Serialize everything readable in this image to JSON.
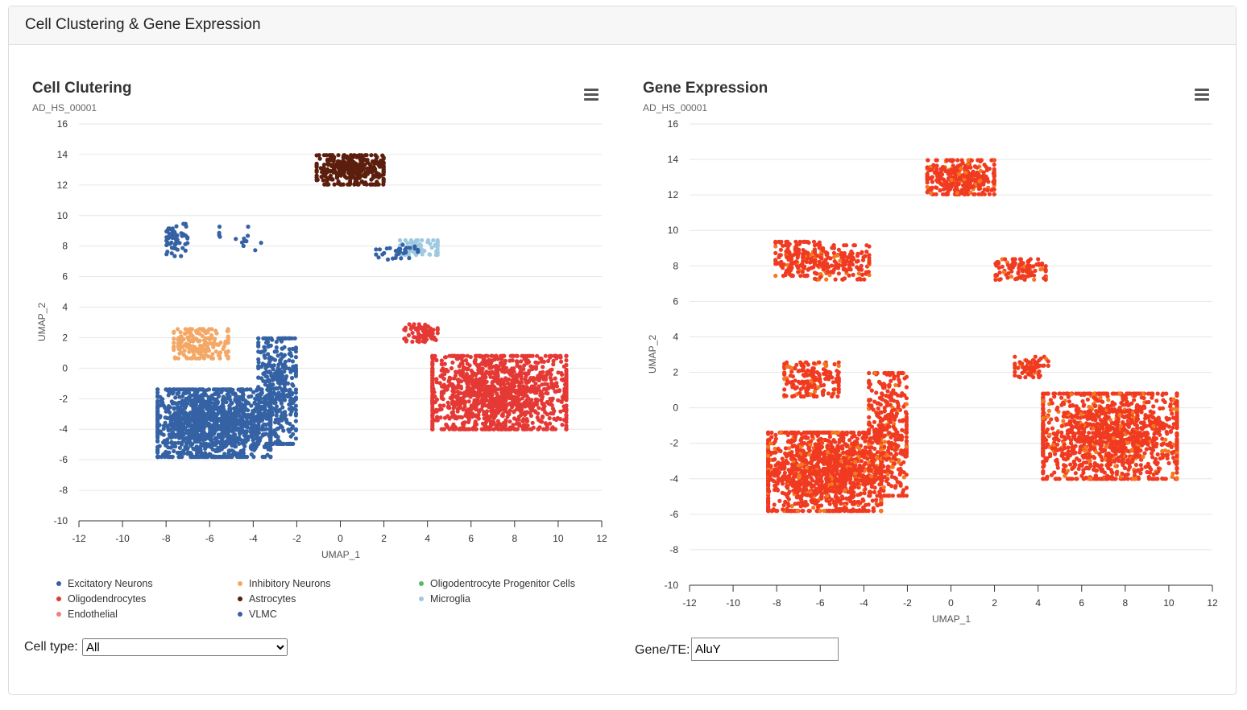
{
  "header": {
    "title": "Cell Clustering & Gene Expression"
  },
  "colors": {
    "excitatory": "#3462a4",
    "inhibitory": "#f4a866",
    "opc": "#5cb85c",
    "oligo": "#e53935",
    "astro": "#5c1e0d",
    "microglia": "#9ecae1",
    "endothelial": "#f08080",
    "vlmc": "#3462a4",
    "expr_base": "#f03a21",
    "expr_alt": "#f5781d"
  },
  "cluster_panel": {
    "title": "Cell Clutering",
    "subtitle": "AD_HS_00001",
    "menu_icon": "hamburger-menu-icon",
    "xlabel": "UMAP_1",
    "ylabel": "UMAP_2",
    "legend": [
      {
        "label": "Excitatory Neurons",
        "color": "#3462a4"
      },
      {
        "label": "Inhibitory Neurons",
        "color": "#f4a866"
      },
      {
        "label": "Oligodentrocyte Progenitor Cells",
        "color": "#5cb85c"
      },
      {
        "label": "Oligodendrocytes",
        "color": "#e53935"
      },
      {
        "label": "Astrocytes",
        "color": "#5c1e0d"
      },
      {
        "label": "Microglia",
        "color": "#9ecae1"
      },
      {
        "label": "Endothelial",
        "color": "#f08080"
      },
      {
        "label": "VLMC",
        "color": "#3462a4"
      }
    ],
    "cell_type_label": "Cell type:",
    "cell_type_value": "All"
  },
  "expression_panel": {
    "title": "Gene Expression",
    "subtitle": "AD_HS_00001",
    "menu_icon": "hamburger-menu-icon",
    "xlabel": "UMAP_1",
    "ylabel": "UMAP_2",
    "gene_label": "Gene/TE:",
    "gene_value": "AluY"
  },
  "chart_data": [
    {
      "type": "scatter",
      "title": "Cell Clutering",
      "subtitle": "AD_HS_00001",
      "xlabel": "UMAP_1",
      "ylabel": "UMAP_2",
      "xlim": [
        -12,
        12
      ],
      "ylim": [
        -10,
        16
      ],
      "xticks": [
        -12,
        -10,
        -8,
        -6,
        -4,
        -2,
        0,
        2,
        4,
        6,
        8,
        10,
        12
      ],
      "yticks": [
        -10,
        -8,
        -6,
        -4,
        -2,
        0,
        2,
        4,
        6,
        8,
        10,
        12,
        14,
        16
      ],
      "grid": true,
      "legend_position": "bottom",
      "clusters": [
        {
          "name": "Excitatory Neurons",
          "color": "#3462a4",
          "center": [
            -5.8,
            -3.6
          ],
          "spread": [
            2.7,
            2.3
          ],
          "n": 1400
        },
        {
          "name": "Excitatory Neurons",
          "color": "#3462a4",
          "center": [
            -2.9,
            -1.5
          ],
          "spread": [
            0.9,
            3.6
          ],
          "n": 400
        },
        {
          "name": "Inhibitory Neurons",
          "color": "#f4a866",
          "center": [
            -6.4,
            1.6
          ],
          "spread": [
            1.3,
            1.0
          ],
          "n": 180
        },
        {
          "name": "Astrocytes",
          "color": "#5c1e0d",
          "center": [
            0.45,
            13.0
          ],
          "spread": [
            1.6,
            1.0
          ],
          "n": 350
        },
        {
          "name": "Oligodendrocytes",
          "color": "#e53935",
          "center": [
            7.3,
            -1.6
          ],
          "spread": [
            3.2,
            2.5
          ],
          "n": 1300
        },
        {
          "name": "Oligodendrocytes",
          "color": "#e53935",
          "center": [
            3.7,
            2.3
          ],
          "spread": [
            0.8,
            0.6
          ],
          "n": 80
        },
        {
          "name": "VLMC",
          "color": "#3462a4",
          "center": [
            -7.5,
            8.4
          ],
          "spread": [
            0.5,
            1.1
          ],
          "n": 60
        },
        {
          "name": "VLMC",
          "color": "#3462a4",
          "center": [
            -4.6,
            8.5
          ],
          "spread": [
            1.0,
            0.8
          ],
          "n": 14
        },
        {
          "name": "Microglia",
          "color": "#9ecae1",
          "center": [
            3.6,
            7.9
          ],
          "spread": [
            0.9,
            0.5
          ],
          "n": 90
        },
        {
          "name": "VLMC",
          "color": "#3462a4",
          "center": [
            2.6,
            7.6
          ],
          "spread": [
            1.0,
            0.5
          ],
          "n": 30
        }
      ]
    },
    {
      "type": "scatter",
      "title": "Gene Expression",
      "subtitle": "AD_HS_00001",
      "xlabel": "UMAP_1",
      "ylabel": "UMAP_2",
      "xlim": [
        -12,
        12
      ],
      "ylim": [
        -10,
        16
      ],
      "xticks": [
        -12,
        -10,
        -8,
        -6,
        -4,
        -2,
        0,
        2,
        4,
        6,
        8,
        10,
        12
      ],
      "yticks": [
        -10,
        -8,
        -6,
        -4,
        -2,
        0,
        2,
        4,
        6,
        8,
        10,
        12,
        14,
        16
      ],
      "grid": true,
      "gene": "AluY",
      "clusters": [
        {
          "center": [
            -5.8,
            -3.6
          ],
          "spread": [
            2.7,
            2.3
          ],
          "n": 1400
        },
        {
          "center": [
            -2.9,
            -1.5
          ],
          "spread": [
            0.9,
            3.6
          ],
          "n": 400
        },
        {
          "center": [
            -6.4,
            1.6
          ],
          "spread": [
            1.3,
            1.0
          ],
          "n": 180
        },
        {
          "center": [
            0.45,
            13.0
          ],
          "spread": [
            1.6,
            1.0
          ],
          "n": 350
        },
        {
          "center": [
            7.3,
            -1.6
          ],
          "spread": [
            3.2,
            2.5
          ],
          "n": 1300
        },
        {
          "center": [
            3.7,
            2.3
          ],
          "spread": [
            0.8,
            0.6
          ],
          "n": 80
        },
        {
          "center": [
            -7.0,
            8.4
          ],
          "spread": [
            1.1,
            1.0
          ],
          "n": 160
        },
        {
          "center": [
            -5.0,
            8.2
          ],
          "spread": [
            1.3,
            1.0
          ],
          "n": 160
        },
        {
          "center": [
            3.2,
            7.8
          ],
          "spread": [
            1.2,
            0.6
          ],
          "n": 110
        }
      ]
    }
  ]
}
